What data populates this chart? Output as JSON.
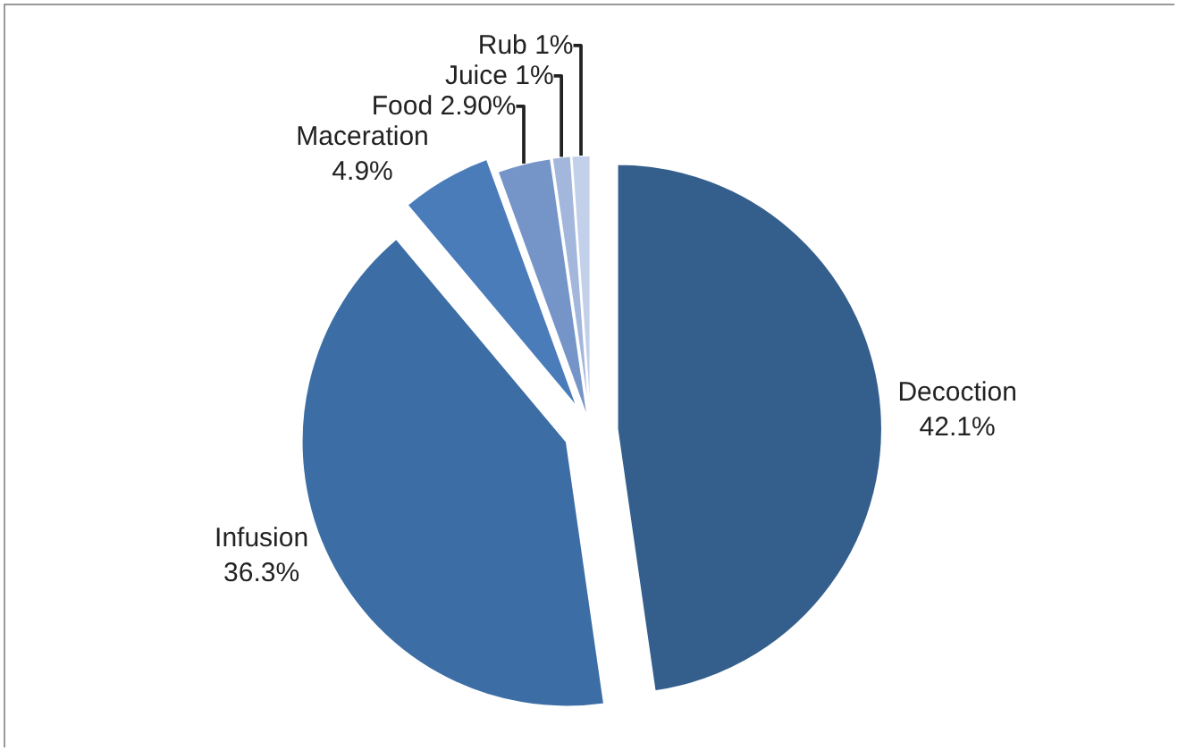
{
  "chart_data": {
    "type": "pie",
    "categories": [
      "Decoction",
      "Infusion",
      "Maceration",
      "Food",
      "Juice",
      "Rub"
    ],
    "values": [
      42.1,
      36.3,
      4.9,
      2.9,
      1,
      1
    ],
    "value_labels": [
      "42.1%",
      "36.3%",
      "4.9%",
      "2.90%",
      "1%",
      "1%"
    ],
    "colors": [
      "#345f8c",
      "#3c6ea5",
      "#4a7cba",
      "#7595c8",
      "#a3b6dc",
      "#c3d0ea"
    ],
    "legend": false
  }
}
